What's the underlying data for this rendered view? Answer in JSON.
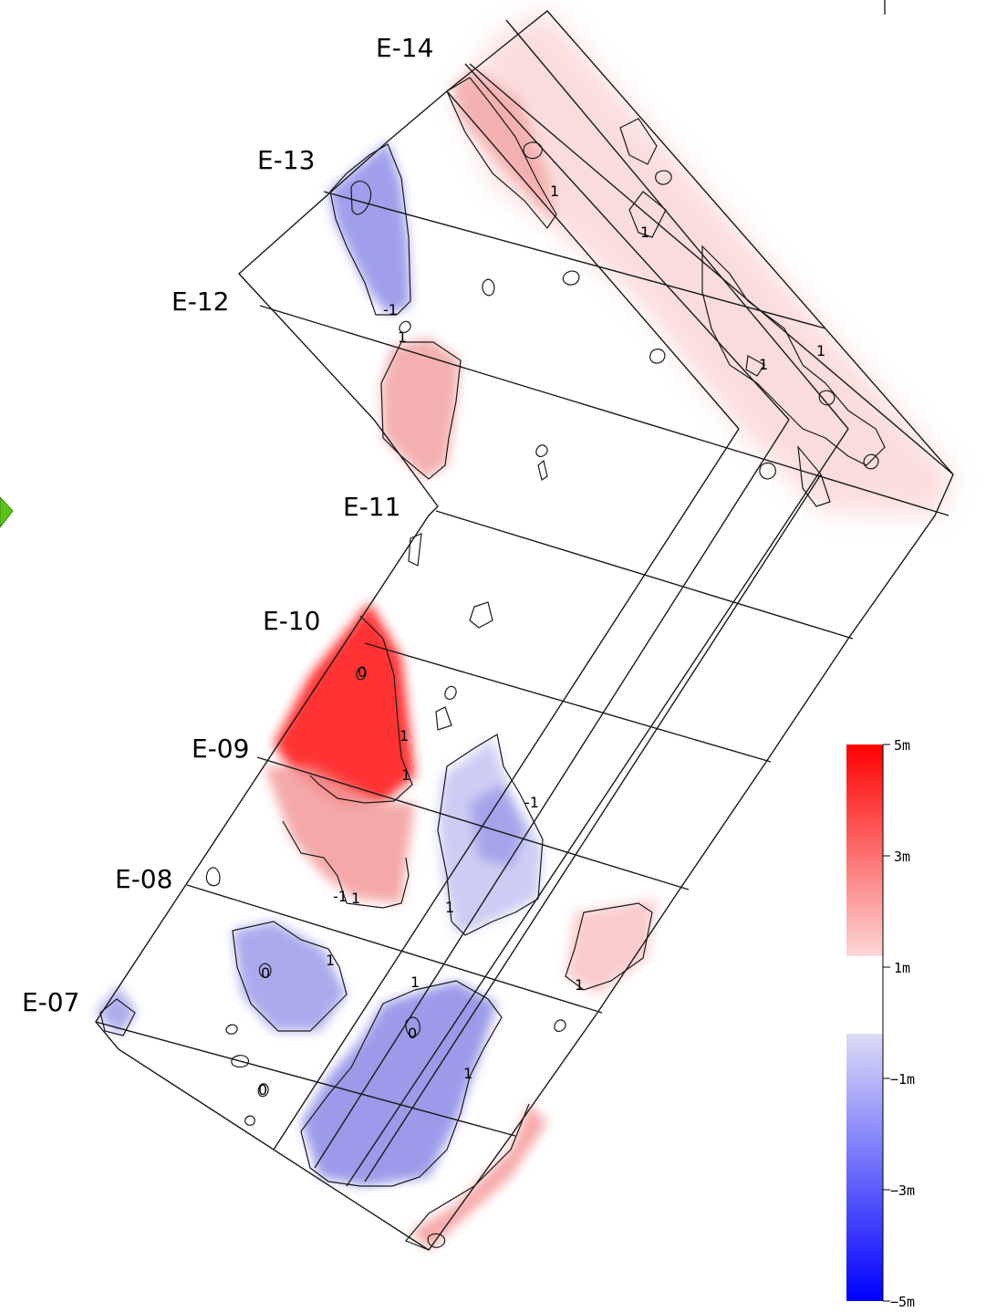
{
  "survey_lines": [
    {
      "id": "E-14"
    },
    {
      "id": "E-13"
    },
    {
      "id": "E-12"
    },
    {
      "id": "E-11"
    },
    {
      "id": "E-10"
    },
    {
      "id": "E-09"
    },
    {
      "id": "E-08"
    },
    {
      "id": "E-07"
    }
  ],
  "colors": {
    "positive_strong": "#ff0000",
    "positive_mid": "#f39a9a",
    "positive_light": "#fbd6d6",
    "neutral": "#ffffff",
    "negative_light": "#dcdcf6",
    "negative_mid": "#9898ec",
    "negative_strong": "#0000ff",
    "outline": "#1a1a1a",
    "marker": "#5cc21a"
  },
  "legend": {
    "ticks": [
      "5m",
      "3m",
      "1m",
      "−1m",
      "−3m",
      "−5m"
    ]
  },
  "contour_labels": [
    "1",
    "1",
    "1",
    "1",
    "-1",
    "1",
    "0",
    "1",
    "1",
    "-1",
    "1",
    "-1",
    "1",
    "0",
    "1",
    "1",
    "0",
    "1",
    "0",
    "1"
  ],
  "marker": {
    "icon": "diamond-marker-icon"
  }
}
